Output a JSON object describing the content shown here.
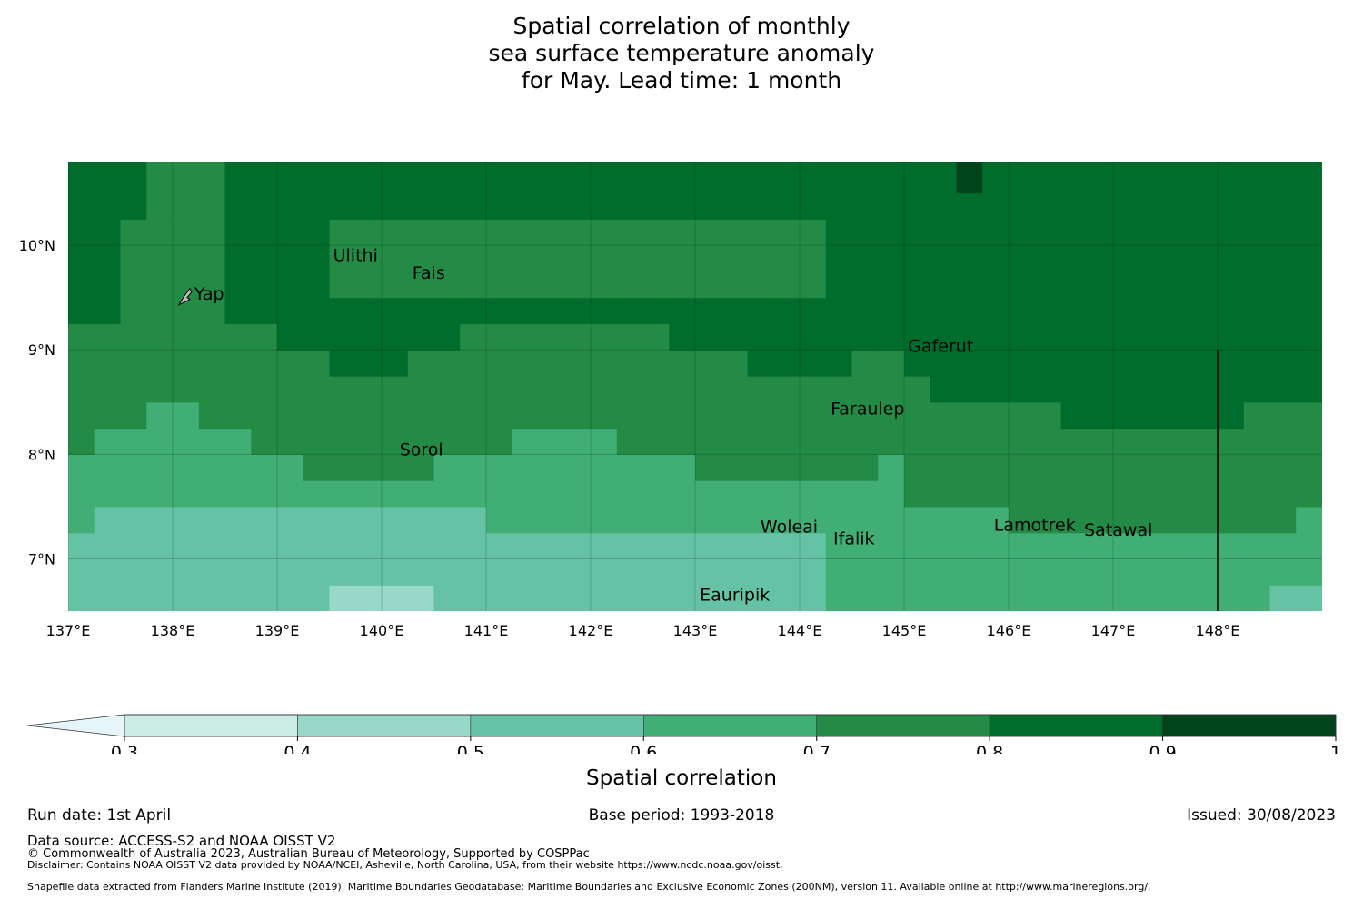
{
  "title_lines": [
    "Spatial correlation of monthly",
    "sea surface temperature anomaly",
    "for May. Lead time: 1 month"
  ],
  "map": {
    "lon_range": [
      137.0,
      149.0
    ],
    "lat_range": [
      6.5,
      10.8
    ],
    "lon_ticks": [
      {
        "value": 137,
        "label": "137°E"
      },
      {
        "value": 138,
        "label": "138°E"
      },
      {
        "value": 139,
        "label": "139°E"
      },
      {
        "value": 140,
        "label": "140°E"
      },
      {
        "value": 141,
        "label": "141°E"
      },
      {
        "value": 142,
        "label": "142°E"
      },
      {
        "value": 143,
        "label": "143°E"
      },
      {
        "value": 144,
        "label": "144°E"
      },
      {
        "value": 145,
        "label": "145°E"
      },
      {
        "value": 146,
        "label": "146°E"
      },
      {
        "value": 147,
        "label": "147°E"
      },
      {
        "value": 148,
        "label": "148°E"
      }
    ],
    "lat_ticks": [
      {
        "value": 10,
        "label": "10°N"
      },
      {
        "value": 9,
        "label": "9°N"
      },
      {
        "value": 8,
        "label": "8°N"
      },
      {
        "value": 7,
        "label": "7°N"
      }
    ],
    "gridlines": true,
    "boundary_line_lon": 148.0,
    "places": [
      {
        "name": "Ulithi",
        "lon": 139.75,
        "lat": 9.85
      },
      {
        "name": "Fais",
        "lon": 140.45,
        "lat": 9.68
      },
      {
        "name": "Yap",
        "lon": 138.35,
        "lat": 9.48
      },
      {
        "name": "Gaferut",
        "lon": 145.35,
        "lat": 8.98
      },
      {
        "name": "Faraulep",
        "lon": 144.65,
        "lat": 8.38
      },
      {
        "name": "Sorol",
        "lon": 140.38,
        "lat": 7.99
      },
      {
        "name": "Woleai",
        "lon": 143.9,
        "lat": 7.25
      },
      {
        "name": "Ifalik",
        "lon": 144.52,
        "lat": 7.14
      },
      {
        "name": "Lamotrek",
        "lon": 146.25,
        "lat": 7.27
      },
      {
        "name": "Satawal",
        "lon": 147.05,
        "lat": 7.22
      },
      {
        "name": "Eauripik",
        "lon": 143.38,
        "lat": 6.6
      }
    ]
  },
  "colorbar": {
    "ticks": [
      "0.3",
      "0.4",
      "0.5",
      "0.6",
      "0.7",
      "0.8",
      "0.9",
      "1"
    ],
    "bins": [
      {
        "range": [
          0.3,
          0.4
        ],
        "color": "#ccece5"
      },
      {
        "range": [
          0.4,
          0.5
        ],
        "color": "#99d8c9"
      },
      {
        "range": [
          0.5,
          0.6
        ],
        "color": "#66c2a4"
      },
      {
        "range": [
          0.6,
          0.7
        ],
        "color": "#41ae76"
      },
      {
        "range": [
          0.7,
          0.8
        ],
        "color": "#238b45"
      },
      {
        "range": [
          0.8,
          0.9
        ],
        "color": "#006d2c"
      },
      {
        "range": [
          0.9,
          1.0
        ],
        "color": "#00441b"
      }
    ],
    "extend_min_color": "#e5f5f9",
    "label": "Spatial correlation"
  },
  "footer": {
    "run_date": "Run date: 1st April",
    "base_period": "Base period: 1993-2018",
    "issued": "Issued: 30/08/2023",
    "data_source": "Data source: ACCESS-S2 and NOAA OISST V2",
    "copyright": "© Commonwealth of Australia 2023, Australian Bureau of Meteorology, Supported by COSPPac",
    "disclaimer": "Disclaimer: Contains NOAA OISST V2 data provided by NOAA/NCEI, Asheville, North Carolina, USA, from their website https://www.ncdc.noaa.gov/oisst.",
    "shapefile": "Shapefile data extracted from Flanders Marine Institute (2019), Maritime Boundaries Geodatabase: Maritime Boundaries and Exclusive Economic Zones (200NM), version 11. Available online at http://www.marineregions.org/."
  }
}
